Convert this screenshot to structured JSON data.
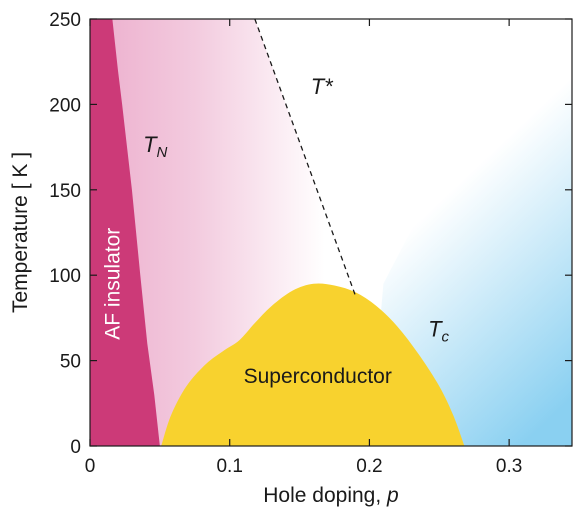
{
  "chart_data": {
    "type": "area",
    "xlabel_main": "Hole doping, ",
    "xlabel_var": "p",
    "ylabel": "Temperature [ K ]",
    "xlim": [
      0,
      0.345
    ],
    "ylim": [
      0,
      250
    ],
    "x_ticks": [
      0,
      0.1,
      0.2,
      0.3
    ],
    "x_tick_labels": [
      "0",
      "0.1",
      "0.2",
      "0.3"
    ],
    "y_ticks": [
      0,
      50,
      100,
      150,
      200,
      250
    ],
    "y_tick_labels": [
      "0",
      "50",
      "100",
      "150",
      "200",
      "250"
    ],
    "regions": {
      "af": {
        "label": "AF insulator",
        "color": "#cc3a78",
        "boundary_TN": [
          [
            0.05,
            0
          ],
          [
            0.046,
            30
          ],
          [
            0.041,
            60
          ],
          [
            0.036,
            100
          ],
          [
            0.03,
            150
          ],
          [
            0.023,
            200
          ],
          [
            0.02,
            220
          ],
          [
            0.016,
            250
          ]
        ]
      },
      "superconductor": {
        "label": "Superconductor",
        "color": "#f8d22e",
        "boundary_Tc": [
          [
            0.051,
            0
          ],
          [
            0.058,
            18
          ],
          [
            0.069,
            35
          ],
          [
            0.083,
            48
          ],
          [
            0.096,
            56
          ],
          [
            0.107,
            62
          ],
          [
            0.118,
            72
          ],
          [
            0.13,
            82
          ],
          [
            0.145,
            91
          ],
          [
            0.16,
            95
          ],
          [
            0.175,
            94
          ],
          [
            0.19,
            90
          ],
          [
            0.205,
            82
          ],
          [
            0.22,
            70
          ],
          [
            0.235,
            54
          ],
          [
            0.25,
            35
          ],
          [
            0.26,
            18
          ],
          [
            0.268,
            0
          ]
        ]
      },
      "pseudogap": {
        "color": "#e9a0c4"
      },
      "fermi_liquid": {
        "color": "#8ad0f1"
      }
    },
    "T_star_line": {
      "style": "dashed",
      "points": [
        [
          0.118,
          250
        ],
        [
          0.19,
          88
        ]
      ]
    },
    "curve_labels": {
      "TN": {
        "main": "T",
        "sub": "N",
        "x": 0.038,
        "y": 172
      },
      "Tstar": {
        "main": "T*",
        "x": 0.158,
        "y": 206
      },
      "Tc": {
        "main": "T",
        "sub": "c",
        "x": 0.242,
        "y": 64
      }
    },
    "region_label_positions": {
      "af": {
        "x": 0.021,
        "y": 95
      },
      "superconductor": {
        "x": 0.163,
        "y": 37
      }
    }
  }
}
